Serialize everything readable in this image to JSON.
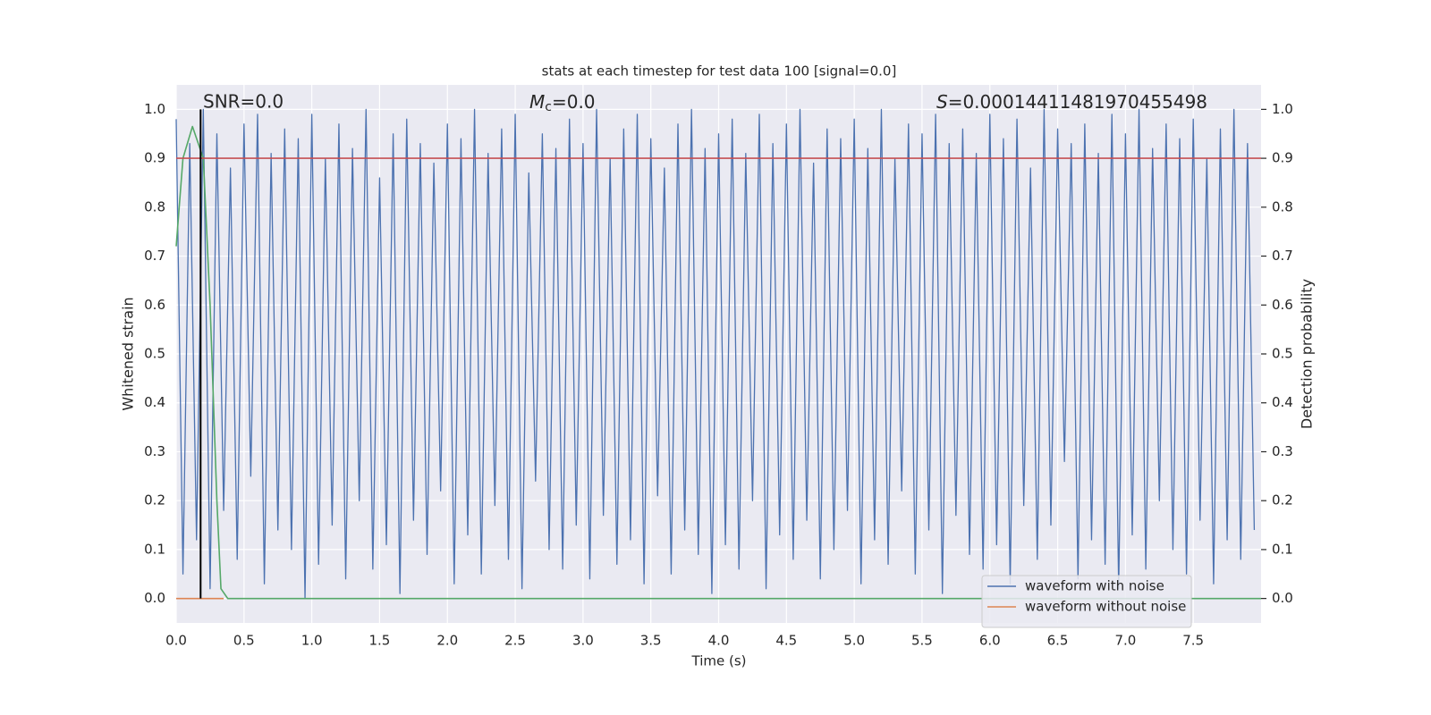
{
  "chart_data": {
    "type": "line",
    "title": "stats at each timestep for test data 100 [signal=0.0]",
    "x_label": "Time (s)",
    "y_label": "Whitened strain",
    "y2_label": "Detection probability",
    "snr_annotation": "SNR=0.0",
    "mc_annotation": {
      "symbol": "M",
      "subscript": "c",
      "text": "=0.0"
    },
    "s_annotation": {
      "symbol": "S",
      "text": "=0.00014411481970455498"
    },
    "xlim": [
      0,
      8.0
    ],
    "ylim": [
      -0.05,
      1.05
    ],
    "y2lim": [
      -0.05,
      1.05
    ],
    "xticks": [
      {
        "value": 0,
        "label": "0.0"
      },
      0.5,
      {
        "value": 1,
        "label": "1.0"
      },
      1.5,
      {
        "value": 2,
        "label": "2.0"
      },
      2.5,
      {
        "value": 3,
        "label": "3.0"
      },
      3.5,
      {
        "value": 4,
        "label": "4.0"
      },
      4.5,
      {
        "value": 5,
        "label": "5.0"
      },
      5.5,
      {
        "value": 6,
        "label": "6.0"
      },
      6.5,
      {
        "value": 7,
        "label": "7.0"
      },
      7.5
    ],
    "yticks": [
      {
        "value": 0,
        "label": "0.0"
      },
      0.1,
      0.2,
      0.3,
      0.4,
      0.5,
      0.6,
      0.7,
      0.8,
      0.9,
      {
        "value": 1,
        "label": "1.0"
      }
    ],
    "y2ticks": [
      {
        "value": 0,
        "label": "0.0"
      },
      0.1,
      0.2,
      0.3,
      0.4,
      0.5,
      0.6,
      0.7,
      0.8,
      0.9,
      {
        "value": 1,
        "label": "1.0"
      }
    ],
    "grid": true,
    "legend": "lower right",
    "threshold": 0.9,
    "threshold_color": "#c44e52",
    "marker_x": 0.18,
    "marker_color": "#000000",
    "series": [
      {
        "name": "waveform with noise",
        "color": "#4c72b0",
        "axis": "y",
        "x": [
          0,
          0.05,
          0.1,
          0.15,
          0.2,
          0.25,
          0.3,
          0.35,
          0.4,
          0.45,
          0.5,
          0.55,
          0.6,
          0.65,
          0.7,
          0.75,
          0.8,
          0.85,
          0.9,
          0.95,
          1,
          1.05,
          1.1,
          1.15,
          1.2,
          1.25,
          1.3,
          1.35,
          1.4,
          1.45,
          1.5,
          1.55,
          1.6,
          1.65,
          1.7,
          1.75,
          1.8,
          1.85,
          1.9,
          1.95,
          2,
          2.05,
          2.1,
          2.15,
          2.2,
          2.25,
          2.3,
          2.35,
          2.4,
          2.45,
          2.5,
          2.55,
          2.6,
          2.65,
          2.7,
          2.75,
          2.8,
          2.85,
          2.9,
          2.95,
          3,
          3.05,
          3.1,
          3.15,
          3.2,
          3.25,
          3.3,
          3.35,
          3.4,
          3.45,
          3.5,
          3.55,
          3.6,
          3.65,
          3.7,
          3.75,
          3.8,
          3.85,
          3.9,
          3.95,
          4,
          4.05,
          4.1,
          4.15,
          4.2,
          4.25,
          4.3,
          4.35,
          4.4,
          4.45,
          4.5,
          4.55,
          4.6,
          4.65,
          4.7,
          4.75,
          4.8,
          4.85,
          4.9,
          4.95,
          5,
          5.05,
          5.1,
          5.15,
          5.2,
          5.25,
          5.3,
          5.35,
          5.4,
          5.45,
          5.5,
          5.55,
          5.6,
          5.65,
          5.7,
          5.75,
          5.8,
          5.85,
          5.9,
          5.95,
          6,
          6.05,
          6.1,
          6.15,
          6.2,
          6.25,
          6.3,
          6.35,
          6.4,
          6.45,
          6.5,
          6.55,
          6.6,
          6.65,
          6.7,
          6.75,
          6.8,
          6.85,
          6.9,
          6.95,
          7,
          7.05,
          7.1,
          7.15,
          7.2,
          7.25,
          7.3,
          7.35,
          7.4,
          7.45,
          7.5,
          7.55,
          7.6,
          7.65,
          7.7,
          7.75,
          7.8,
          7.85,
          7.9,
          7.95
        ],
        "values": [
          0.98,
          0.05,
          0.93,
          0.12,
          1.0,
          0.02,
          0.95,
          0.18,
          0.88,
          0.08,
          0.97,
          0.25,
          0.99,
          0.03,
          0.91,
          0.14,
          0.96,
          0.1,
          0.94,
          0.0,
          0.99,
          0.07,
          0.9,
          0.15,
          0.97,
          0.04,
          0.92,
          0.2,
          1.0,
          0.06,
          0.86,
          0.11,
          0.95,
          0.01,
          0.98,
          0.16,
          0.93,
          0.09,
          0.89,
          0.22,
          0.97,
          0.03,
          0.94,
          0.13,
          1.0,
          0.05,
          0.91,
          0.19,
          0.96,
          0.08,
          0.99,
          0.02,
          0.87,
          0.24,
          0.95,
          0.1,
          0.92,
          0.06,
          0.98,
          0.15,
          0.93,
          0.04,
          1.0,
          0.17,
          0.9,
          0.07,
          0.96,
          0.12,
          0.99,
          0.03,
          0.94,
          0.21,
          0.88,
          0.05,
          0.97,
          0.14,
          1.0,
          0.09,
          0.92,
          0.01,
          0.95,
          0.11,
          0.98,
          0.06,
          0.91,
          0.2,
          0.99,
          0.02,
          0.93,
          0.13,
          0.97,
          0.08,
          1.0,
          0.16,
          0.89,
          0.04,
          0.96,
          0.1,
          0.94,
          0.18,
          0.98,
          0.03,
          0.92,
          0.12,
          1.0,
          0.07,
          0.9,
          0.22,
          0.97,
          0.05,
          0.95,
          0.14,
          0.99,
          0.01,
          0.93,
          0.17,
          0.96,
          0.09,
          0.91,
          0.06,
          0.99,
          0.11,
          0.94,
          0.03,
          0.98,
          0.19,
          0.88,
          0.08,
          1.0,
          0.15,
          0.96,
          0.28,
          0.93,
          0.04,
          0.97,
          0.12,
          0.91,
          0.07,
          0.99,
          0.02,
          0.95,
          0.13,
          1.0,
          0.06,
          0.92,
          0.2,
          0.97,
          0.1,
          0.94,
          0.05,
          0.98,
          0.16,
          0.9,
          0.03,
          0.96,
          0.12,
          1.0,
          0.08,
          0.93,
          0.14
        ]
      },
      {
        "name": "waveform without noise",
        "color": "#dd8452",
        "axis": "y",
        "x": [
          0,
          0.35
        ],
        "values": [
          0,
          0
        ]
      },
      {
        "color": "#55a868",
        "axis": "y2",
        "x": [
          0,
          0.05,
          0.12,
          0.2,
          0.25,
          0.3,
          0.33,
          0.38,
          8.0
        ],
        "values": [
          0.72,
          0.9,
          0.965,
          0.9,
          0.6,
          0.2,
          0.02,
          0.0,
          0.0
        ]
      }
    ]
  }
}
